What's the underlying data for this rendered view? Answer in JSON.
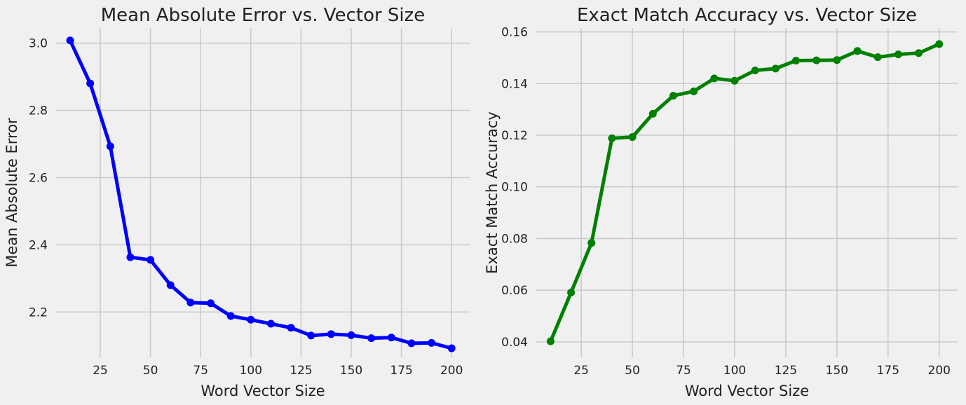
{
  "chart_data": [
    {
      "type": "line",
      "title": "Mean Absolute Error vs. Vector Size",
      "xlabel": "Word Vector Size",
      "ylabel": "Mean Absolute Error",
      "xlim": [
        3,
        209
      ],
      "ylim": [
        2.065,
        3.045
      ],
      "xticks": [
        25,
        50,
        75,
        100,
        125,
        150,
        175,
        200
      ],
      "yticks": [
        2.2,
        2.4,
        2.6,
        2.8,
        3.0
      ],
      "ytick_labels": [
        "2.2",
        "2.4",
        "2.6",
        "2.8",
        "3.0"
      ],
      "grid": true,
      "color": "#0000ff",
      "x": [
        10,
        20,
        30,
        40,
        50,
        60,
        70,
        80,
        90,
        100,
        110,
        120,
        130,
        140,
        150,
        160,
        170,
        180,
        190,
        200
      ],
      "values": [
        3.008,
        2.88,
        2.693,
        2.363,
        2.355,
        2.28,
        2.228,
        2.226,
        2.188,
        2.177,
        2.165,
        2.153,
        2.13,
        2.134,
        2.131,
        2.122,
        2.124,
        2.107,
        2.108,
        2.092
      ]
    },
    {
      "type": "line",
      "title": "Exact Match Accuracy vs. Vector Size",
      "xlabel": "Word Vector Size",
      "ylabel": "Exact Match Accuracy",
      "xlim": [
        3,
        209
      ],
      "ylim": [
        0.034,
        0.1615
      ],
      "xticks": [
        25,
        50,
        75,
        100,
        125,
        150,
        175,
        200
      ],
      "yticks": [
        0.04,
        0.06,
        0.08,
        0.1,
        0.12,
        0.14,
        0.16
      ],
      "ytick_labels": [
        "0.04",
        "0.06",
        "0.08",
        "0.10",
        "0.12",
        "0.14",
        "0.16"
      ],
      "grid": true,
      "color": "#008000",
      "x": [
        10,
        20,
        30,
        40,
        50,
        60,
        70,
        80,
        90,
        100,
        110,
        120,
        130,
        140,
        150,
        160,
        170,
        180,
        190,
        200
      ],
      "values": [
        0.0402,
        0.0591,
        0.0783,
        0.1188,
        0.1193,
        0.1283,
        0.1353,
        0.137,
        0.142,
        0.1411,
        0.1451,
        0.1458,
        0.1489,
        0.149,
        0.1491,
        0.1526,
        0.1502,
        0.1513,
        0.1518,
        0.1553
      ]
    }
  ]
}
